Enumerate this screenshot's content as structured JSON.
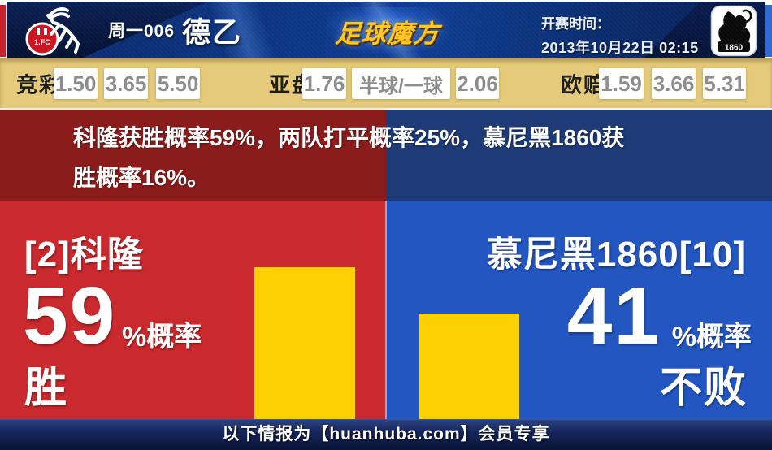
{
  "header": {
    "league_label": "周一006",
    "league_name": "德乙",
    "site_logo": "足球魔方",
    "kickoff_label": "开赛时间：",
    "kickoff_time": "2013年10月22日 02:15",
    "home_badge_text": "1.FC",
    "away_badge_text": "1860"
  },
  "odds": {
    "jingcai": {
      "label": "竞彩",
      "values": [
        "1.50",
        "3.65",
        "5.50"
      ]
    },
    "asian": {
      "label": "亚盘",
      "home": "1.76",
      "handicap": "半球/一球",
      "away": "2.06"
    },
    "euro": {
      "label": "欧赔",
      "values": [
        "1.59",
        "3.66",
        "5.31"
      ]
    }
  },
  "summary": {
    "line1": "科隆获胜概率59%，两队打平概率25%，慕尼黑1860获",
    "line2": "胜概率16%。"
  },
  "panels": {
    "home": {
      "team": "[2]科隆",
      "probability": "59",
      "probability_suffix": "%概率",
      "outcome": "胜",
      "bar_percent": 59
    },
    "away": {
      "team": "慕尼黑1860[10]",
      "probability": "41",
      "probability_suffix": "%概率",
      "outcome": "不败",
      "bar_percent": 41
    }
  },
  "footer": {
    "notice": "以下情报为【huanhuba.com】会员专享"
  },
  "colors": {
    "home_accent": "#ca292d",
    "away_accent": "#2356c0",
    "home_dark": "#8b1c1c",
    "away_dark": "#1e3b78",
    "bar_yellow": "#fdd101",
    "odds_band": "#e6ca7b",
    "logo_gold": "#ffc71e",
    "footer_navy": "#0a1337"
  }
}
